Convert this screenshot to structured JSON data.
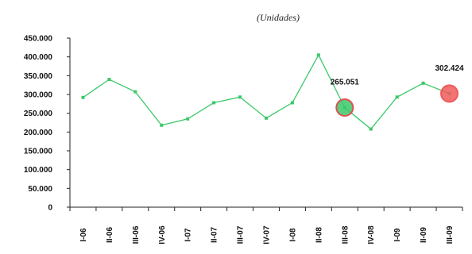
{
  "chart_data": {
    "type": "line",
    "subtitle": "(Unidades)",
    "categories": [
      "I-06",
      "II-06",
      "III-06",
      "IV-06",
      "I-07",
      "II-07",
      "III-07",
      "IV-07",
      "I-08",
      "II-08",
      "III-08",
      "IV-08",
      "I-09",
      "II-09",
      "III-09"
    ],
    "values": [
      292000,
      340000,
      307000,
      218000,
      235000,
      278000,
      293000,
      237000,
      278000,
      405000,
      265051,
      208000,
      293000,
      330000,
      302424
    ],
    "ylim": [
      0,
      450000
    ],
    "yticks": [
      0,
      50000,
      100000,
      150000,
      200000,
      250000,
      300000,
      350000,
      400000,
      450000
    ],
    "ytick_labels": [
      "0",
      "50.000",
      "100.000",
      "150.000",
      "200.000",
      "250.000",
      "300.000",
      "350.000",
      "400.000",
      "450.000"
    ],
    "line_color": "#3cc86a",
    "highlights": [
      {
        "index": 10,
        "label": "265.051",
        "color": "#3cc86a",
        "ring": "#e05050"
      },
      {
        "index": 14,
        "label": "302.424",
        "color": "#f05a5a",
        "ring": "#f05a5a"
      }
    ],
    "grid": false,
    "legend": "none"
  }
}
